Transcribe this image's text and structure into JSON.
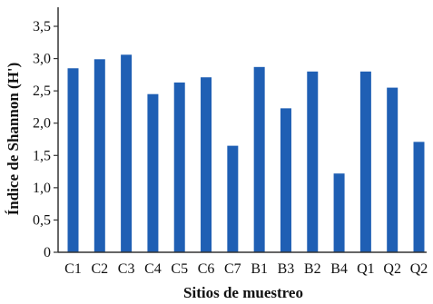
{
  "chart_data": {
    "type": "bar",
    "xlabel": "Sitios de muestreo",
    "ylabel": "Índice de Shannon (H')",
    "ylim": [
      0,
      3.5
    ],
    "yticks": [
      "0",
      "0,5",
      "1,0",
      "1,5",
      "2,0",
      "2,5",
      "3,0",
      "3,5"
    ],
    "categories": [
      "C1",
      "C2",
      "C3",
      "C4",
      "C5",
      "C6",
      "C7",
      "B1",
      "B3",
      "B2",
      "B4",
      "Q1",
      "Q2",
      "Q2"
    ],
    "values": [
      2.85,
      2.99,
      3.06,
      2.45,
      2.63,
      2.71,
      1.65,
      2.87,
      2.23,
      2.8,
      1.22,
      2.8,
      2.55,
      1.71
    ],
    "grid": false,
    "legend": "none",
    "bar_color": "#1f5fb4",
    "axis_color": "#333333"
  }
}
